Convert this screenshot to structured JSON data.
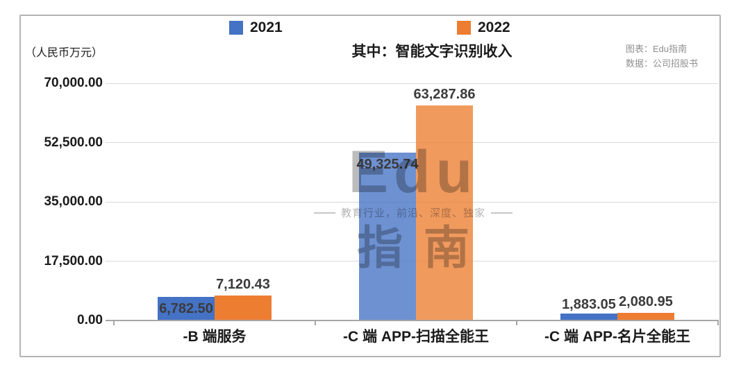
{
  "legend": [
    {
      "label": "2021",
      "color": "#4472C4"
    },
    {
      "label": "2022",
      "color": "#ED7D31"
    }
  ],
  "header": {
    "title": "其中：智能文字识别收入",
    "unit_label": "（人民币万元）",
    "chart_credit": "图表：Edu指南",
    "data_credit": "数据：公司招股书"
  },
  "watermark": {
    "brand": "Edu",
    "tagline": "教育行业，前沿、深度、独家",
    "brand_cn": "指南"
  },
  "chart_data": {
    "type": "bar",
    "title": "其中：智能文字识别收入",
    "unit": "（人民币万元）",
    "categories": [
      "-B 端服务",
      "-C 端 APP-扫描全能王",
      "-C 端 APP-名片全能王"
    ],
    "series": [
      {
        "name": "2021",
        "color": "#4472C4",
        "values": [
          6782.5,
          49325.74,
          1883.05
        ],
        "value_labels": [
          "6,782.50",
          "49,325.74",
          "1,883.05"
        ]
      },
      {
        "name": "2022",
        "color": "#ED7D31",
        "values": [
          7120.43,
          63287.86,
          2080.95
        ],
        "value_labels": [
          "7,120.43",
          "63,287.86",
          "2,080.95"
        ]
      }
    ],
    "ylim": [
      0,
      70000
    ],
    "yticks": [
      70000,
      52500,
      35000,
      17500,
      0
    ],
    "ytick_labels": [
      "70,000.00",
      "52,500.00",
      "35,000.00",
      "17,500.00",
      "0.00"
    ],
    "grid": true,
    "legend_position": "top",
    "source_note": "数据：公司招股书"
  }
}
